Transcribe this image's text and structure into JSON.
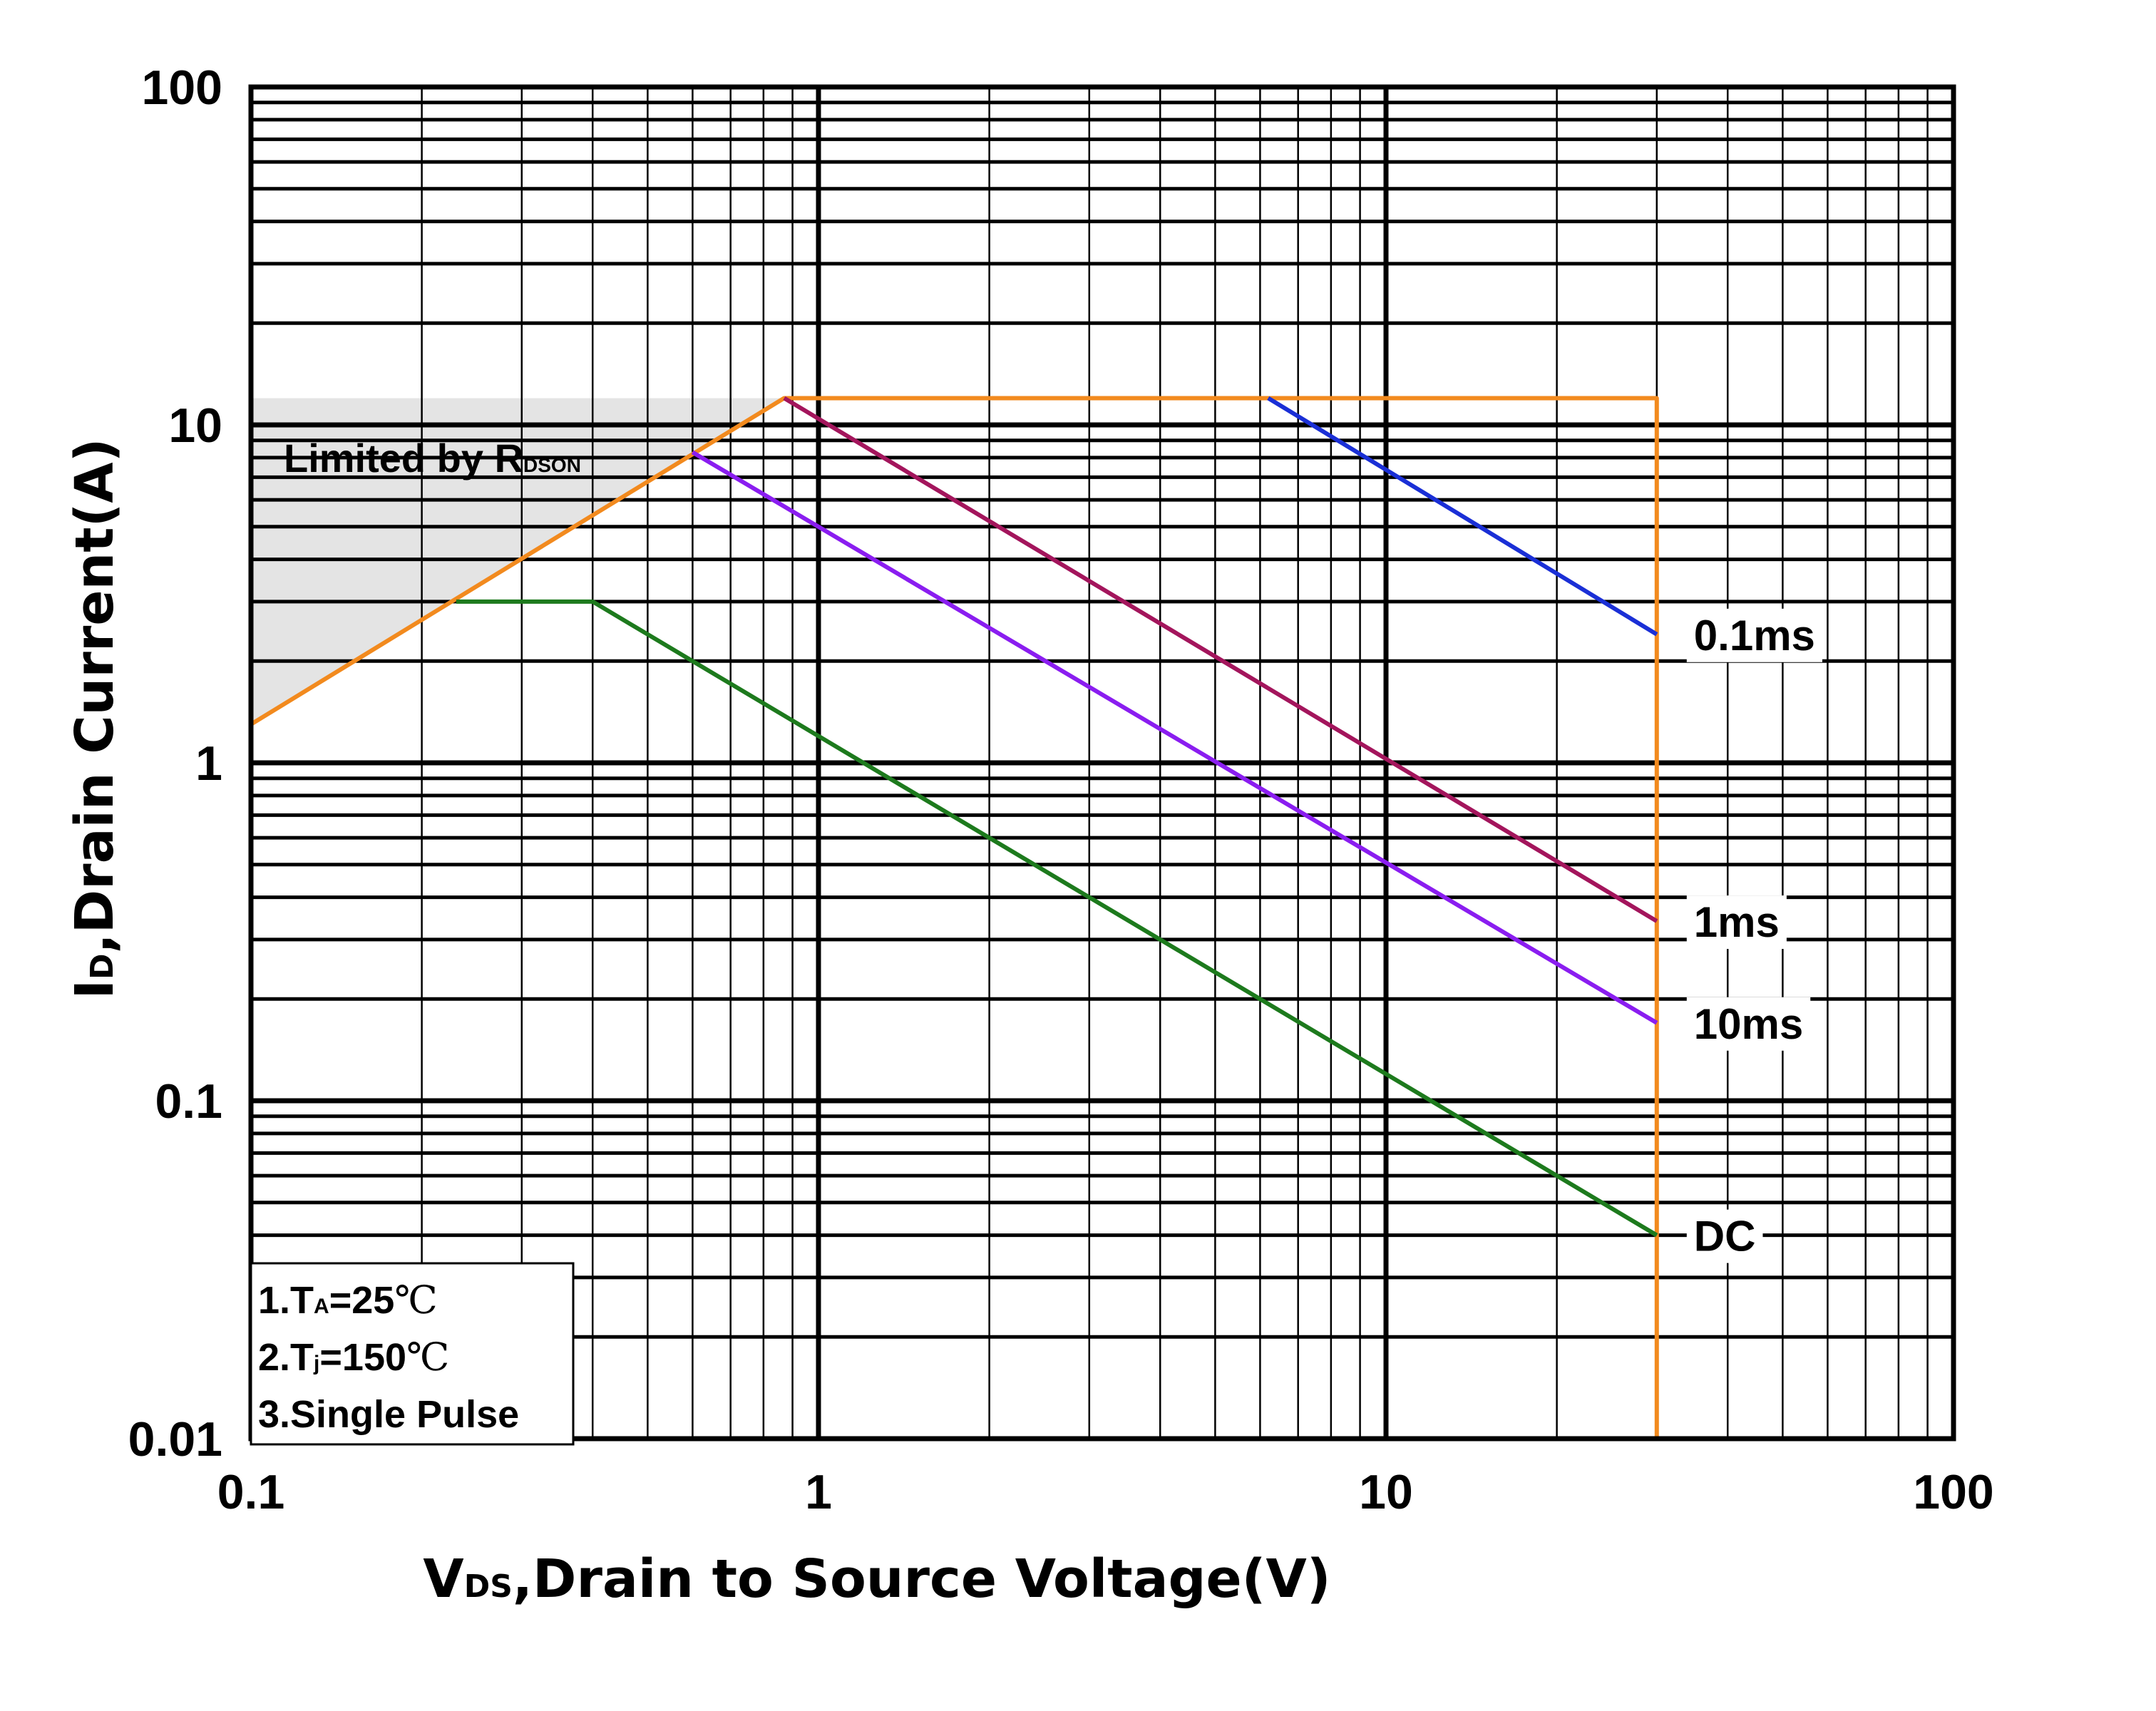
{
  "chart_data": {
    "type": "line",
    "xscale": "log",
    "yscale": "log",
    "xlim": [
      0.1,
      100
    ],
    "ylim": [
      0.01,
      100
    ],
    "grid": true,
    "xlabel": {
      "main": "V",
      "sub": "DS",
      "rest": ",Drain to Source Voltage(V)"
    },
    "ylabel": {
      "main": "I",
      "sub": "D",
      "rest": ",Drain Current(A)"
    },
    "x_ticks": [
      {
        "value": 0.1,
        "label": "0.1"
      },
      {
        "value": 1,
        "label": "1"
      },
      {
        "value": 10,
        "label": "10"
      },
      {
        "value": 100,
        "label": "100"
      }
    ],
    "y_ticks": [
      {
        "value": 0.01,
        "label": "0.01"
      },
      {
        "value": 0.1,
        "label": "0.1"
      },
      {
        "value": 1,
        "label": "1"
      },
      {
        "value": 10,
        "label": "10"
      },
      {
        "value": 100,
        "label": "100"
      }
    ],
    "limited_region": {
      "label_main": "Limited by R",
      "label_sub": "DSON",
      "fill_color": "#e4e4e4",
      "points": [
        [
          0.1,
          12
        ],
        [
          0.87,
          12
        ],
        [
          0.1,
          1.3
        ]
      ]
    },
    "series": [
      {
        "name": "Boundary",
        "color": "#f28a1e",
        "label": "",
        "points": [
          [
            0.1,
            1.3
          ],
          [
            0.87,
            12
          ],
          [
            30,
            12
          ],
          [
            30,
            0.01
          ]
        ]
      },
      {
        "name": "0.1ms",
        "color": "#1a2fd6",
        "label": "0.1ms",
        "points": [
          [
            6.2,
            12
          ],
          [
            30,
            2.4
          ]
        ]
      },
      {
        "name": "1ms",
        "color": "#a3155c",
        "label": "1ms",
        "points": [
          [
            0.87,
            12
          ],
          [
            30,
            0.34
          ]
        ]
      },
      {
        "name": "10ms",
        "color": "#8a1df0",
        "label": "10ms",
        "points": [
          [
            0.6,
            8.3
          ],
          [
            30,
            0.17
          ]
        ]
      },
      {
        "name": "DC",
        "color": "#1d7a1d",
        "label": "DC",
        "points": [
          [
            0.23,
            3
          ],
          [
            0.4,
            3
          ],
          [
            30,
            0.04
          ]
        ]
      }
    ],
    "notes": [
      {
        "prefix": "1.T",
        "sub": "A",
        "value": "=25",
        "unit": "℃"
      },
      {
        "prefix": "2.T",
        "sub": "j",
        "value": "=150",
        "unit": "℃"
      },
      {
        "prefix": "3.Single Pulse",
        "sub": "",
        "value": "",
        "unit": ""
      }
    ]
  }
}
